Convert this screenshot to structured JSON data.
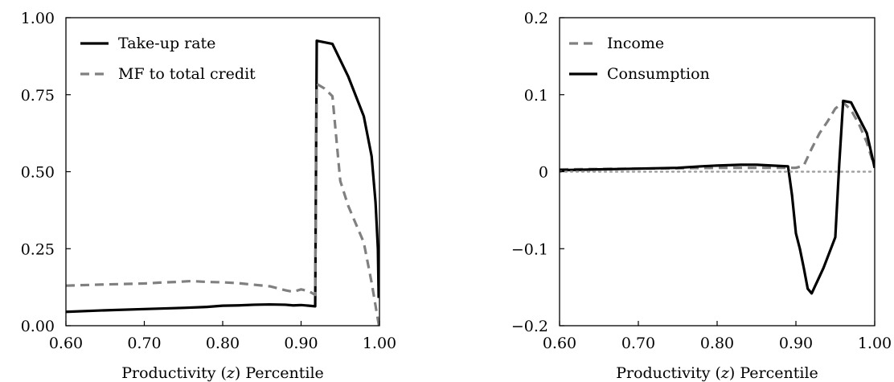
{
  "chart_data": [
    {
      "type": "line",
      "xlabel_parts": [
        "Productivity (",
        "z",
        ") Percentile"
      ],
      "ylabel": "",
      "xlim": [
        0.6,
        1.0
      ],
      "ylim": [
        0.0,
        1.0
      ],
      "x_ticks": [
        0.6,
        0.7,
        0.8,
        0.9,
        1.0
      ],
      "x_tick_labels": [
        "0.60",
        "0.70",
        "0.80",
        "0.90",
        "1.00"
      ],
      "y_ticks": [
        0.0,
        0.25,
        0.5,
        0.75,
        1.0
      ],
      "y_tick_labels": [
        "0.00",
        "0.25",
        "0.50",
        "0.75",
        "1.00"
      ],
      "grid": false,
      "legend_position": "top-left",
      "series": [
        {
          "name": "Take-up rate",
          "color": "#000000",
          "dash": "solid",
          "x": [
            0.6,
            0.65,
            0.7,
            0.75,
            0.78,
            0.8,
            0.82,
            0.84,
            0.86,
            0.88,
            0.89,
            0.9,
            0.91,
            0.918,
            0.92,
            0.94,
            0.96,
            0.98,
            0.99,
            0.995,
            0.998,
            0.999
          ],
          "y": [
            0.045,
            0.05,
            0.054,
            0.058,
            0.061,
            0.065,
            0.066,
            0.068,
            0.069,
            0.068,
            0.066,
            0.067,
            0.065,
            0.063,
            0.925,
            0.915,
            0.81,
            0.68,
            0.55,
            0.4,
            0.25,
            0.09
          ]
        },
        {
          "name": "MF to total credit",
          "color": "#808080",
          "dash": "dashed",
          "x": [
            0.6,
            0.65,
            0.7,
            0.72,
            0.74,
            0.76,
            0.78,
            0.8,
            0.82,
            0.84,
            0.86,
            0.88,
            0.89,
            0.9,
            0.91,
            0.918,
            0.92,
            0.93,
            0.94,
            0.95,
            0.96,
            0.98,
            0.99,
            1.0
          ],
          "y": [
            0.13,
            0.134,
            0.137,
            0.14,
            0.142,
            0.145,
            0.142,
            0.141,
            0.138,
            0.133,
            0.128,
            0.115,
            0.11,
            0.118,
            0.112,
            0.1,
            0.785,
            0.77,
            0.745,
            0.47,
            0.39,
            0.27,
            0.14,
            -0.01
          ]
        }
      ]
    },
    {
      "type": "line",
      "xlabel_parts": [
        "Productivity (",
        "z",
        ") Percentile"
      ],
      "ylabel": "",
      "xlim": [
        0.6,
        1.0
      ],
      "ylim": [
        -0.2,
        0.2
      ],
      "x_ticks": [
        0.6,
        0.7,
        0.8,
        0.9,
        1.0
      ],
      "x_tick_labels": [
        "0.60",
        "0.70",
        "0.80",
        "0.90",
        "1.00"
      ],
      "y_ticks": [
        -0.2,
        -0.1,
        0.0,
        0.1,
        0.2
      ],
      "y_tick_labels": [
        "−0.2",
        "−0.1",
        "0",
        "0.1",
        "0.2"
      ],
      "grid": false,
      "legend_position": "top-left",
      "series": [
        {
          "name": "Income",
          "color": "#808080",
          "dash": "dashed",
          "x": [
            0.6,
            0.7,
            0.8,
            0.86,
            0.9,
            0.91,
            0.92,
            0.93,
            0.94,
            0.95,
            0.96,
            0.97,
            0.98,
            0.99,
            1.0
          ],
          "y": [
            0.003,
            0.004,
            0.005,
            0.005,
            0.005,
            0.008,
            0.03,
            0.05,
            0.065,
            0.082,
            0.09,
            0.08,
            0.062,
            0.038,
            0.005
          ]
        },
        {
          "name": "Consumption",
          "color": "#000000",
          "dash": "solid",
          "x": [
            0.6,
            0.7,
            0.75,
            0.78,
            0.8,
            0.83,
            0.85,
            0.87,
            0.89,
            0.895,
            0.9,
            0.905,
            0.91,
            0.915,
            0.92,
            0.935,
            0.95,
            0.955,
            0.96,
            0.965,
            0.97,
            0.98,
            0.99,
            1.0
          ],
          "y": [
            0.002,
            0.004,
            0.005,
            0.007,
            0.008,
            0.009,
            0.009,
            0.008,
            0.007,
            -0.03,
            -0.08,
            -0.1,
            -0.125,
            -0.152,
            -0.158,
            -0.125,
            -0.085,
            0.01,
            0.092,
            0.091,
            0.09,
            0.07,
            0.05,
            0.005
          ]
        },
        {
          "name": "",
          "color": "#a0a0a0",
          "dash": "dotted",
          "x": [
            0.6,
            1.0
          ],
          "y": [
            0.0,
            0.0
          ]
        }
      ]
    }
  ]
}
